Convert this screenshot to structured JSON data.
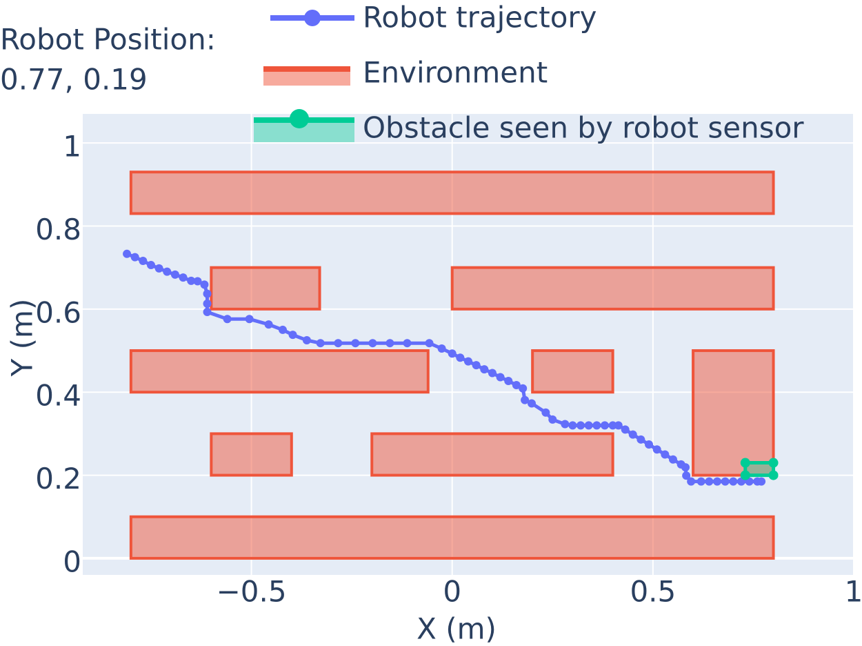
{
  "chart_data": {
    "type": "scatter",
    "annotation": [
      "Robot Position:",
      "0.77, 0.19"
    ],
    "xlabel": "X (m)",
    "ylabel": "Y (m)",
    "xlim": [
      -0.92,
      1.0
    ],
    "ylim": [
      -0.04,
      1.07
    ],
    "xticks": [
      {
        "value": -0.5,
        "label": "−0.5"
      },
      0,
      0.5,
      1
    ],
    "yticks": [
      0,
      0.2,
      0.4,
      0.6,
      0.8,
      1
    ],
    "grid": true,
    "series": [
      {
        "name": "Robot trajectory",
        "mode": "lines+markers",
        "color": "#636efa",
        "x": [
          -0.81,
          -0.79,
          -0.77,
          -0.75,
          -0.73,
          -0.71,
          -0.69,
          -0.67,
          -0.65,
          -0.634,
          -0.617,
          -0.61,
          -0.61,
          -0.61,
          -0.56,
          -0.505,
          -0.457,
          -0.422,
          -0.397,
          -0.362,
          -0.328,
          -0.284,
          -0.241,
          -0.198,
          -0.155,
          -0.112,
          -0.057,
          -0.026,
          0,
          0.02,
          0.04,
          0.06,
          0.08,
          0.1,
          0.12,
          0.14,
          0.16,
          0.176,
          0.181,
          0.198,
          0.233,
          0.25,
          0.281,
          0.3,
          0.32,
          0.34,
          0.36,
          0.38,
          0.4,
          0.414,
          0.431,
          0.45,
          0.47,
          0.49,
          0.51,
          0.53,
          0.55,
          0.57,
          0.581,
          0.583,
          0.595,
          0.62,
          0.64,
          0.66,
          0.68,
          0.7,
          0.72,
          0.74,
          0.76,
          0.77
        ],
        "y": [
          0.733,
          0.725,
          0.716,
          0.706,
          0.698,
          0.69,
          0.683,
          0.676,
          0.668,
          0.667,
          0.659,
          0.637,
          0.613,
          0.593,
          0.576,
          0.576,
          0.563,
          0.55,
          0.538,
          0.525,
          0.518,
          0.518,
          0.518,
          0.518,
          0.518,
          0.518,
          0.518,
          0.505,
          0.493,
          0.483,
          0.474,
          0.465,
          0.455,
          0.446,
          0.436,
          0.427,
          0.417,
          0.409,
          0.381,
          0.373,
          0.351,
          0.334,
          0.323,
          0.32,
          0.32,
          0.32,
          0.32,
          0.32,
          0.32,
          0.32,
          0.31,
          0.298,
          0.286,
          0.274,
          0.262,
          0.25,
          0.238,
          0.226,
          0.219,
          0.199,
          0.185,
          0.185,
          0.185,
          0.185,
          0.185,
          0.185,
          0.185,
          0.185,
          0.185,
          0.185
        ]
      },
      {
        "name": "Environment",
        "mode": "rects",
        "color": "#ef553b",
        "rects": [
          {
            "x": [
              -0.8,
              0.8
            ],
            "y": [
              0.83,
              0.93
            ]
          },
          {
            "x": [
              -0.6,
              -0.33
            ],
            "y": [
              0.6,
              0.7
            ]
          },
          {
            "x": [
              0,
              0.8
            ],
            "y": [
              0.6,
              0.7
            ]
          },
          {
            "x": [
              -0.8,
              -0.06
            ],
            "y": [
              0.4,
              0.5
            ]
          },
          {
            "x": [
              0.2,
              0.4
            ],
            "y": [
              0.4,
              0.5
            ]
          },
          {
            "x": [
              0.6,
              0.8
            ],
            "y": [
              0.2,
              0.5
            ]
          },
          {
            "x": [
              -0.6,
              -0.4
            ],
            "y": [
              0.2,
              0.3
            ]
          },
          {
            "x": [
              -0.2,
              0.4
            ],
            "y": [
              0.2,
              0.3
            ]
          },
          {
            "x": [
              -0.8,
              0.8
            ],
            "y": [
              0,
              0.1
            ]
          }
        ]
      },
      {
        "name": "Obstacle seen by robot sensor",
        "mode": "fill+markers",
        "color": "#00cc96",
        "x": [
          0.73,
          0.73,
          0.8,
          0.8,
          0.73
        ],
        "y": [
          0.2,
          0.23,
          0.23,
          0.2,
          0.2
        ]
      }
    ]
  }
}
